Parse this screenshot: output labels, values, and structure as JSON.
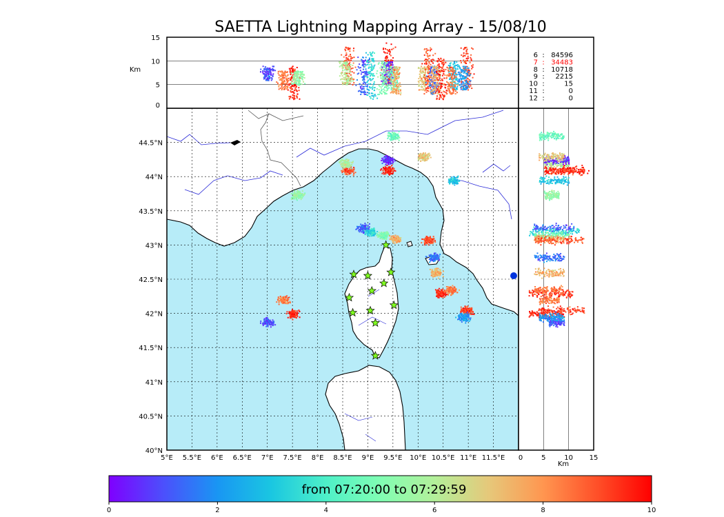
{
  "chart_data": {
    "type": "scatter",
    "title": "SAETTA Lightning Mapping Array - 15/08/10",
    "map": {
      "lon_range": [
        5,
        12
      ],
      "lat_range": [
        40,
        45
      ],
      "lon_ticks": [
        5,
        5.5,
        6,
        6.5,
        7,
        7.5,
        8,
        8.5,
        9,
        9.5,
        10,
        10.5,
        11,
        11.5
      ],
      "lon_tick_labels": [
        "5°E",
        "5.5°E",
        "6°E",
        "6.5°E",
        "7°E",
        "7.5°E",
        "8°E",
        "8.5°E",
        "9°E",
        "9.5°E",
        "10°E",
        "10.5°E",
        "11°E",
        "11.5°E"
      ],
      "lat_ticks": [
        40,
        40.5,
        41,
        41.5,
        42,
        42.5,
        43,
        43.5,
        44,
        44.5
      ],
      "lat_tick_labels": [
        "40°N",
        "40.5°N",
        "41°N",
        "41.5°N",
        "42°N",
        "42.5°N",
        "43°N",
        "43.5°N",
        "44°N",
        "44.5°N"
      ],
      "grid": "dotted",
      "stations": [
        {
          "lon": 8.72,
          "lat": 42.57
        },
        {
          "lon": 9.0,
          "lat": 42.55
        },
        {
          "lon": 9.46,
          "lat": 42.6
        },
        {
          "lon": 9.32,
          "lat": 42.44
        },
        {
          "lon": 9.08,
          "lat": 42.33
        },
        {
          "lon": 8.63,
          "lat": 42.23
        },
        {
          "lon": 8.7,
          "lat": 42.01
        },
        {
          "lon": 9.05,
          "lat": 42.04
        },
        {
          "lon": 9.52,
          "lat": 42.12
        },
        {
          "lon": 9.15,
          "lat": 41.86
        },
        {
          "lon": 9.15,
          "lat": 41.38
        },
        {
          "lon": 9.36,
          "lat": 43.0
        }
      ]
    },
    "altitude_axis": {
      "label": "Km",
      "range": [
        0,
        15
      ],
      "top_ticks": [
        0,
        5,
        10,
        15
      ],
      "right_ticks": [
        0,
        5,
        10,
        15
      ]
    },
    "clusters": [
      {
        "lon": 7.5,
        "lat": 42.0,
        "time": 9.5,
        "alt_min": 2,
        "alt_max": 9
      },
      {
        "lon": 7.0,
        "lat": 41.88,
        "time": 1.0,
        "alt_min": 6,
        "alt_max": 9
      },
      {
        "lon": 7.3,
        "lat": 42.2,
        "time": 8.5,
        "alt_min": 4,
        "alt_max": 8
      },
      {
        "lon": 8.6,
        "lat": 44.1,
        "time": 9.0,
        "alt_min": 5,
        "alt_max": 13
      },
      {
        "lon": 8.55,
        "lat": 44.2,
        "time": 6.0,
        "alt_min": 5,
        "alt_max": 10
      },
      {
        "lon": 7.6,
        "lat": 43.74,
        "time": 5.5,
        "alt_min": 5,
        "alt_max": 8
      },
      {
        "lon": 9.4,
        "lat": 44.1,
        "time": 9.5,
        "alt_min": 5,
        "alt_max": 14
      },
      {
        "lon": 9.4,
        "lat": 44.25,
        "time": 0.5,
        "alt_min": 5,
        "alt_max": 10
      },
      {
        "lon": 9.5,
        "lat": 44.6,
        "time": 4.5,
        "alt_min": 4,
        "alt_max": 9
      },
      {
        "lon": 10.1,
        "lat": 44.3,
        "time": 7.0,
        "alt_min": 4,
        "alt_max": 9
      },
      {
        "lon": 10.7,
        "lat": 43.95,
        "time": 3.0,
        "alt_min": 4,
        "alt_max": 10
      },
      {
        "lon": 8.9,
        "lat": 43.25,
        "time": 1.2,
        "alt_min": 3,
        "alt_max": 11
      },
      {
        "lon": 9.05,
        "lat": 43.2,
        "time": 3.5,
        "alt_min": 2,
        "alt_max": 12
      },
      {
        "lon": 9.3,
        "lat": 43.15,
        "time": 5.0,
        "alt_min": 3,
        "alt_max": 10
      },
      {
        "lon": 9.55,
        "lat": 43.1,
        "time": 7.5,
        "alt_min": 3,
        "alt_max": 9
      },
      {
        "lon": 10.2,
        "lat": 43.08,
        "time": 9.0,
        "alt_min": 3,
        "alt_max": 13
      },
      {
        "lon": 10.3,
        "lat": 42.82,
        "time": 1.5,
        "alt_min": 3,
        "alt_max": 9
      },
      {
        "lon": 10.35,
        "lat": 42.6,
        "time": 7.5,
        "alt_min": 3,
        "alt_max": 9
      },
      {
        "lon": 10.45,
        "lat": 42.3,
        "time": 9.5,
        "alt_min": 2,
        "alt_max": 11
      },
      {
        "lon": 10.65,
        "lat": 42.35,
        "time": 8.5,
        "alt_min": 3,
        "alt_max": 9
      },
      {
        "lon": 10.95,
        "lat": 42.05,
        "time": 9.2,
        "alt_min": 4,
        "alt_max": 13
      },
      {
        "lon": 10.9,
        "lat": 41.95,
        "time": 2.0,
        "alt_min": 4,
        "alt_max": 9
      }
    ],
    "counts_panel": [
      {
        "key": "6",
        "value": "84596",
        "highlight": false
      },
      {
        "key": "7",
        "value": "34483",
        "highlight": true
      },
      {
        "key": "8",
        "value": "10718",
        "highlight": false
      },
      {
        "key": "9",
        "value": "2215",
        "highlight": false
      },
      {
        "key": "10",
        "value": "15",
        "highlight": false
      },
      {
        "key": "11",
        "value": "0",
        "highlight": false
      },
      {
        "key": "12",
        "value": "0",
        "highlight": false
      }
    ],
    "colorbar": {
      "label": "from 07:20:00 to 07:29:59",
      "range": [
        0,
        10
      ],
      "ticks": [
        0,
        2,
        4,
        6,
        8,
        10
      ],
      "colormap": "rainbow"
    },
    "colors": {
      "sea": "#b7ecf8",
      "land": "#ffffff",
      "rivers": "#2a2ad8",
      "station_fill": "#80ff20"
    }
  }
}
